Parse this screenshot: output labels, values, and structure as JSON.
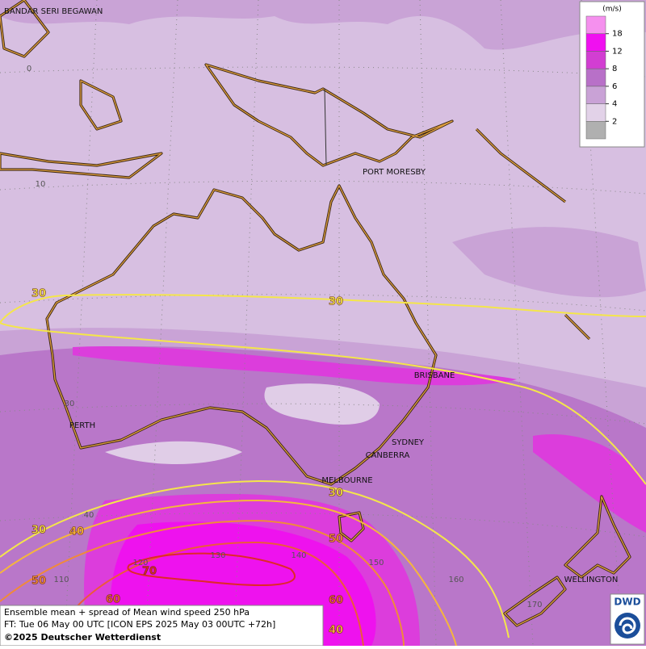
{
  "map": {
    "cities": [
      "BANDAR SERI BEGAWAN",
      "PORT MORESBY",
      "BRISBANE",
      "SYDNEY",
      "CANBERRA",
      "MELBOURNE",
      "PERTH",
      "WELLINGTON"
    ],
    "grid_labels": [
      "0",
      "10",
      "30",
      "40",
      "110",
      "120",
      "130",
      "140",
      "150",
      "160",
      "170"
    ],
    "contour_labels": [
      30,
      30,
      30,
      30,
      40,
      50,
      50,
      60,
      60,
      70,
      40
    ],
    "contour_colors": {
      "30": "#f4e64a",
      "40": "#f5b63c",
      "50": "#f08a3a",
      "60": "#ec5a3a",
      "70": "#e02828"
    },
    "legend": {
      "unit": "(m/s)",
      "ticks": [
        2,
        4,
        6,
        8,
        12,
        18
      ],
      "colors": [
        "#b0b0b0",
        "#e2d2e8",
        "#c9a2d6",
        "#b870c8",
        "#d23ed2",
        "#f010f0",
        "#f590ee"
      ]
    },
    "footer": [
      "Ensemble mean + spread of Mean wind speed 250 hPa",
      "FT: Tue 06 May 00 UTC [ICON EPS 2025 May 03 00UTC +72h]",
      "©2025 Deutscher Wetterdienst"
    ],
    "logo": "DWD"
  }
}
